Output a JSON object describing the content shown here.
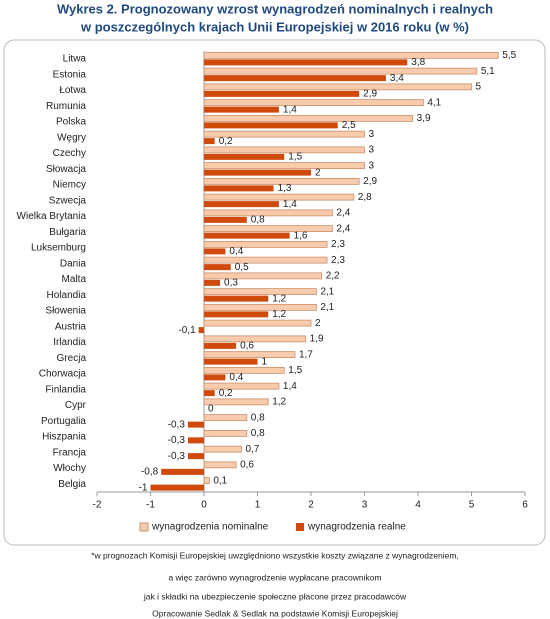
{
  "chart_data": {
    "type": "hbar",
    "title": "Wykres 2. Prognozowany wzrost wynagrodzeń nominalnych i realnych",
    "subtitle": "w poszczególnych krajach Unii Europejskiej w 2016 roku (w %)",
    "categories": [
      "Litwa",
      "Estonia",
      "Łotwa",
      "Rumunia",
      "Polska",
      "Węgry",
      "Czechy",
      "Słowacja",
      "Niemcy",
      "Szwecja",
      "Wielka Brytania",
      "Bułgaria",
      "Luksemburg",
      "Dania",
      "Malta",
      "Holandia",
      "Słowenia",
      "Austria",
      "Irlandia",
      "Grecja",
      "Chorwacja",
      "Finlandia",
      "Cypr",
      "Portugalia",
      "Hiszpania",
      "Francja",
      "Włochy",
      "Belgia"
    ],
    "series": [
      {
        "name": "wynagrodzenia nominalne",
        "color": "#f8cbad",
        "values": [
          5.5,
          5.1,
          5,
          4.1,
          3.9,
          3,
          3,
          3,
          2.9,
          2.8,
          2.4,
          2.4,
          2.3,
          2.3,
          2.2,
          2.1,
          2.1,
          2,
          1.9,
          1.7,
          1.5,
          1.4,
          1.2,
          0.8,
          0.8,
          0.7,
          0.6,
          0.1
        ],
        "value_labels": [
          "5,5",
          "5,1",
          "5",
          "4,1",
          "3,9",
          "3",
          "3",
          "3",
          "2,9",
          "2,8",
          "2,4",
          "2,4",
          "2,3",
          "2,3",
          "2,2",
          "2,1",
          "2,1",
          "2",
          "1,9",
          "1,7",
          "1,5",
          "1,4",
          "1,2",
          "0,8",
          "0,8",
          "0,7",
          "0,6",
          "0,1"
        ]
      },
      {
        "name": "wynagrodzenia realne",
        "color": "#d04a0c",
        "values": [
          3.8,
          3.4,
          2.9,
          1.4,
          2.5,
          0.2,
          1.5,
          2,
          1.3,
          1.4,
          0.8,
          1.6,
          0.4,
          0.5,
          0.3,
          1.2,
          1.2,
          -0.1,
          0.6,
          1,
          0.4,
          0.2,
          0,
          -0.3,
          -0.3,
          -0.3,
          -0.8,
          -1
        ],
        "value_labels": [
          "3,8",
          "3,4",
          "2,9",
          "1,4",
          "2,5",
          "0,2",
          "1,5",
          "2",
          "1,3",
          "1,4",
          "0,8",
          "1,6",
          "0,4",
          "0,5",
          "0,3",
          "1,2",
          "1,2",
          "-0,1",
          "0,6",
          "1",
          "0,4",
          "0,2",
          "0",
          "-0,3",
          "-0,3",
          "-0,3",
          "-0,8",
          "-1"
        ]
      }
    ],
    "xlim": [
      -2,
      6
    ],
    "xticks": [
      -2,
      -1,
      0,
      1,
      2,
      3,
      4,
      5,
      6
    ],
    "notes": [
      "*w prognozach Komisji Europejskiej uwzględniono  wszystkie koszty związane z wynagrodzeniem,",
      "a więc zarówno wynagrodzenie  wypłacane pracownikom",
      "jak i składki na ubezpieczenie  społeczne płacone przez pracodawców",
      "Opracowanie Sedlak & Sedlak na podstawie Komisji Europejskiej"
    ]
  }
}
